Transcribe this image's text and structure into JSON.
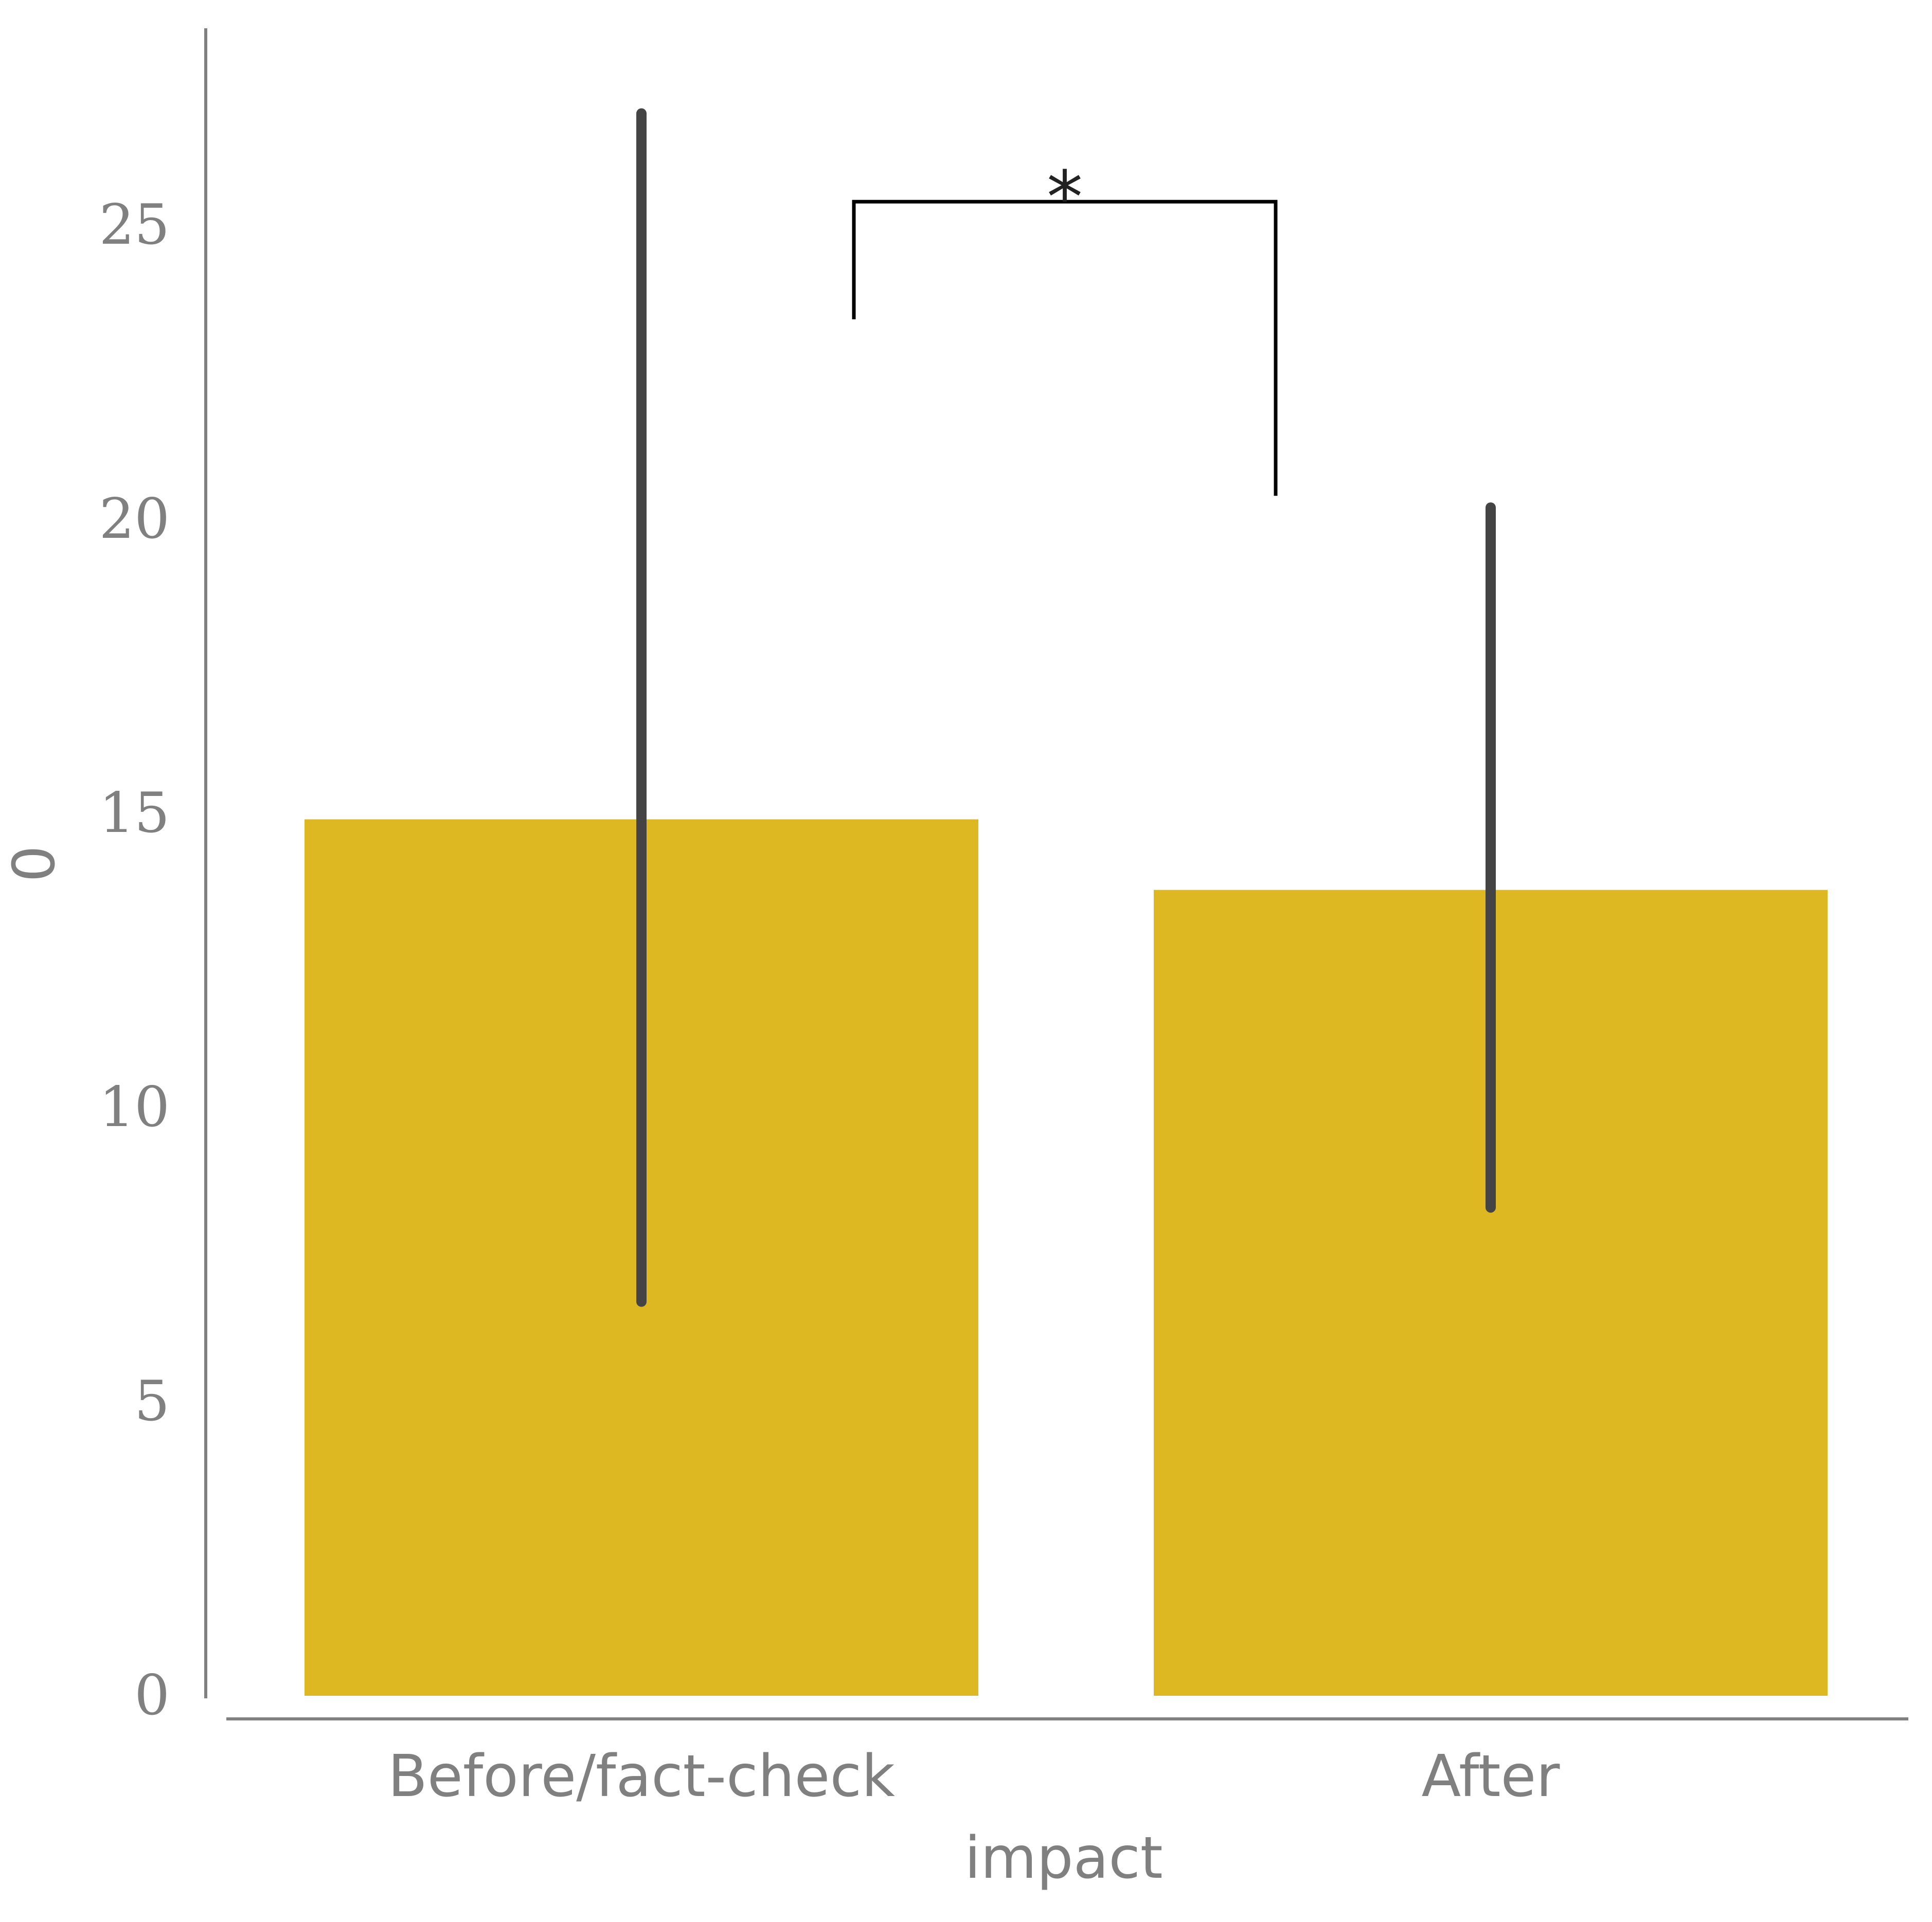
{
  "chart_data": {
    "type": "bar",
    "categories": [
      "Before/fact-check",
      "After"
    ],
    "values": [
      14.9,
      13.7
    ],
    "error_bars": [
      {
        "low": 6.7,
        "high": 26.9
      },
      {
        "low": 8.3,
        "high": 20.2
      }
    ],
    "title": "",
    "xlabel": "impact",
    "ylabel": "0",
    "ylim": [
      0,
      28.4
    ],
    "yticks": [
      "0",
      "5",
      "10",
      "15",
      "20",
      "25"
    ],
    "grid": false,
    "legend": "none",
    "significance": {
      "label": "*",
      "between": [
        0,
        1
      ],
      "left_base": 23.4,
      "right_base": 20.4,
      "top": 25.4
    },
    "colors": {
      "bar": "#ddb822",
      "error_bar": "#444444",
      "axis": "#808080",
      "annotation": "#000000"
    }
  }
}
